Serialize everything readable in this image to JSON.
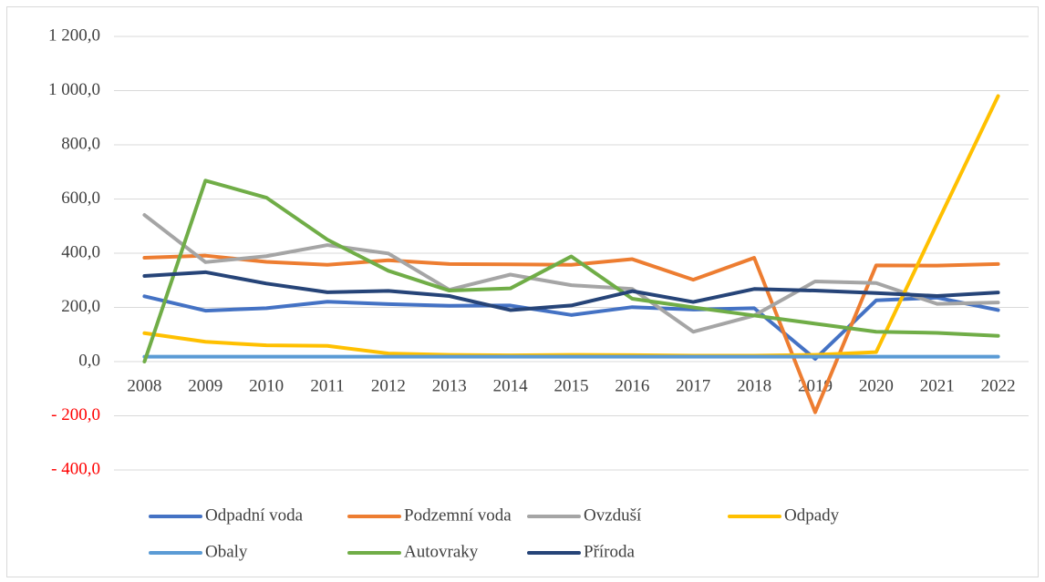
{
  "chart_data": {
    "type": "line",
    "categories": [
      "2008",
      "2009",
      "2010",
      "2011",
      "2012",
      "2013",
      "2014",
      "2015",
      "2016",
      "2017",
      "2018",
      "2019",
      "2020",
      "2021",
      "2022"
    ],
    "series": [
      {
        "name": "Odpadní voda",
        "color": "#4472c4",
        "values": [
          241,
          188,
          197,
          221,
          212,
          206,
          207,
          172,
          201,
          192,
          197,
          10,
          226,
          236,
          190
        ]
      },
      {
        "name": "Podzemní voda",
        "color": "#ed7d31",
        "values": [
          383,
          391,
          368,
          357,
          374,
          360,
          359,
          357,
          378,
          302,
          383,
          -187,
          355,
          354,
          360
        ]
      },
      {
        "name": "Ovzduší",
        "color": "#a5a5a5",
        "values": [
          541,
          367,
          389,
          430,
          399,
          265,
          321,
          282,
          268,
          110,
          170,
          296,
          290,
          213,
          218
        ]
      },
      {
        "name": "Odpady",
        "color": "#ffc000",
        "values": [
          105,
          73,
          60,
          58,
          30,
          25,
          23,
          25,
          24,
          22,
          22,
          25,
          35,
          510,
          980
        ]
      },
      {
        "name": "Obaly",
        "color": "#5b9bd5",
        "values": [
          18,
          18,
          18,
          18,
          18,
          18,
          18,
          18,
          18,
          18,
          18,
          18,
          18,
          18,
          18
        ]
      },
      {
        "name": "Autovraky",
        "color": "#70ad47",
        "values": [
          0,
          668,
          605,
          450,
          335,
          262,
          270,
          388,
          232,
          200,
          170,
          140,
          110,
          106,
          95
        ]
      },
      {
        "name": "Příroda",
        "color": "#264478",
        "values": [
          316,
          330,
          288,
          256,
          261,
          242,
          190,
          207,
          260,
          220,
          268,
          262,
          253,
          242,
          255
        ]
      }
    ],
    "ylim": [
      -400,
      1200
    ],
    "yticks": [
      {
        "value": -400,
        "label": "- 400,0"
      },
      {
        "value": -200,
        "label": "- 200,0"
      },
      {
        "value": 0,
        "label": "0,0"
      },
      {
        "value": 200,
        "label": "200,0"
      },
      {
        "value": 400,
        "label": "400,0"
      },
      {
        "value": 600,
        "label": "600,0"
      },
      {
        "value": 800,
        "label": "800,0"
      },
      {
        "value": 1000,
        "label": "1 000,0"
      },
      {
        "value": 1200,
        "label": "1 200,0"
      }
    ],
    "negative_tick_color": "#ff0000",
    "grid": true,
    "legend": "bottom"
  }
}
